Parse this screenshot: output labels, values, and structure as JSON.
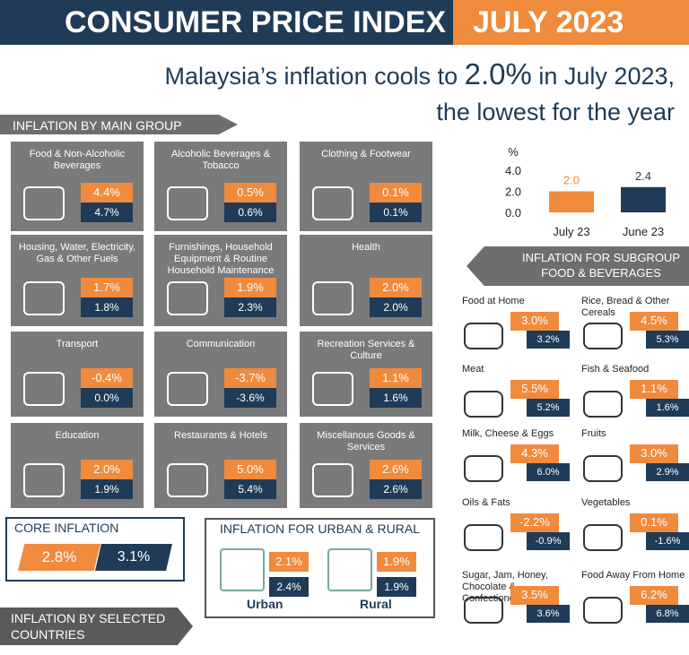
{
  "header": {
    "title": "CONSUMER PRICE INDEX",
    "period": "JULY 2023"
  },
  "headline": {
    "before": "Malaysia’s inflation cools to",
    "highlight": "2.0%",
    "after": "in July 2023,",
    "line2": "the lowest for the year"
  },
  "main_group": {
    "title": "INFLATION BY MAIN GROUP",
    "tiles": [
      {
        "label": "Food & Non-Alcoholic Beverages",
        "july": "4.4%",
        "june": "4.7%"
      },
      {
        "label": "Alcoholic Beverages & Tobacco",
        "july": "0.5%",
        "june": "0.6%"
      },
      {
        "label": "Clothing & Footwear",
        "july": "0.1%",
        "june": "0.1%"
      },
      {
        "label": "Housing, Water, Electricity, Gas & Other Fuels",
        "july": "1.7%",
        "june": "1.8%"
      },
      {
        "label": "Furnishings, Household Equipment & Routine Household Maintenance",
        "july": "1.9%",
        "june": "2.3%"
      },
      {
        "label": "Health",
        "july": "2.0%",
        "june": "2.0%"
      },
      {
        "label": "Transport",
        "july": "-0.4%",
        "june": "0.0%"
      },
      {
        "label": "Communication",
        "july": "-3.7%",
        "june": "-3.6%"
      },
      {
        "label": "Recreation Services & Culture",
        "july": "1.1%",
        "june": "1.6%"
      },
      {
        "label": "Education",
        "july": "2.0%",
        "june": "1.9%"
      },
      {
        "label": "Restaurants & Hotels",
        "july": "5.0%",
        "june": "5.4%"
      },
      {
        "label": "Miscellanous Goods & Services",
        "july": "2.6%",
        "june": "2.6%"
      }
    ]
  },
  "chart_data": {
    "type": "bar",
    "y_unit": "%",
    "categories": [
      "July 23",
      "June 23"
    ],
    "values": [
      2.0,
      2.4
    ],
    "value_labels": [
      "2.0",
      "2.4"
    ],
    "colors": [
      "#f08a3c",
      "#1f3b57"
    ],
    "ylim": [
      0,
      4.0
    ],
    "yticks": [
      {
        "value": 0,
        "label": "0.0"
      },
      {
        "value": 2,
        "label": "2.0"
      },
      {
        "value": 4,
        "label": "4.0"
      }
    ],
    "grid": false
  },
  "subgroup": {
    "title_lines": [
      "INFLATION FOR SUBGROUP",
      "FOOD & BEVERAGES"
    ],
    "items": [
      {
        "label": "Food at Home",
        "july": "3.0%",
        "june": "3.2%"
      },
      {
        "label": "Rice, Bread & Other Cereals",
        "july": "4.5%",
        "june": "5.3%"
      },
      {
        "label": "Meat",
        "july": "5.5%",
        "june": "5.2%"
      },
      {
        "label": "Fish & Seafood",
        "july": "1.1%",
        "june": "1.6%"
      },
      {
        "label": "Milk, Cheese & Eggs",
        "july": "4.3%",
        "june": "6.0%"
      },
      {
        "label": "Fruits",
        "july": "3.0%",
        "june": "2.9%"
      },
      {
        "label": "Oils & Fats",
        "july": "-2.2%",
        "june": "-0.9%"
      },
      {
        "label": "Vegetables",
        "july": "0.1%",
        "june": "-1.6%"
      },
      {
        "label": "Sugar, Jam, Honey, Chocolate & Confectionery",
        "july": "3.5%",
        "june": "3.6%"
      },
      {
        "label": "Food Away From Home",
        "july": "6.2%",
        "june": "6.8%"
      }
    ]
  },
  "core": {
    "title": "CORE INFLATION",
    "july": "2.8%",
    "june": "3.1%"
  },
  "urban_rural": {
    "title": "INFLATION FOR URBAN & RURAL",
    "items": [
      {
        "label": "Urban",
        "july": "2.1%",
        "june": "2.4%"
      },
      {
        "label": "Rural",
        "july": "1.9%",
        "june": "1.9%"
      }
    ]
  },
  "countries": {
    "title_lines": [
      "INFLATION BY SELECTED",
      "COUNTRIES"
    ]
  }
}
